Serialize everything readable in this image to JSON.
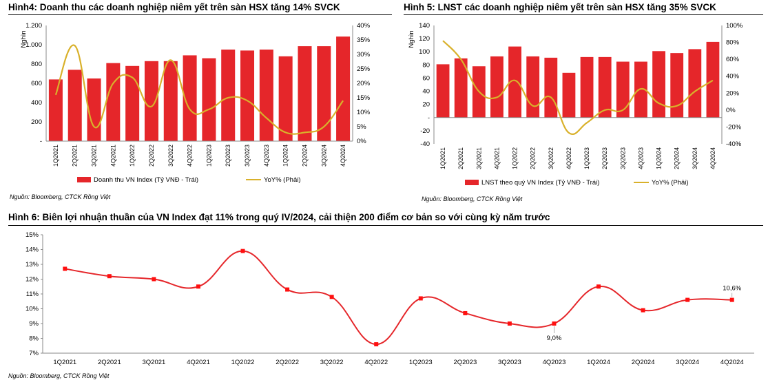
{
  "colors": {
    "bar": "#e5262a",
    "yoy_line": "#d9b12b",
    "margin_line": "#e5262a",
    "marker": "#ff1010"
  },
  "figures": {
    "fig4": {
      "title": "Hình4: Doanh thu các doanh nghiệp niêm yết trên sàn HSX tăng 14% SVCK",
      "source": "Nguồn: Bloomberg, CTCK Rồng Việt"
    },
    "fig5": {
      "title": "Hình 5: LNST các doanh nghiệp niêm yết trên sàn HSX tăng 35% SVCK",
      "source": "Nguồn: Bloomberg, CTCK Rồng Việt"
    },
    "fig6": {
      "title": "Hình 6: Biên lợi nhuận thuần của VN Index đạt 11% trong quý IV/2024, cải thiện 200 điểm cơ bản so với cùng kỳ năm trước",
      "source": "Nguồn: Bloomberg, CTCK Rồng Việt"
    }
  },
  "chart_data": [
    {
      "type": "bar+line",
      "categories": [
        "1Q2021",
        "2Q2021",
        "3Q2021",
        "4Q2021",
        "1Q2022",
        "2Q2022",
        "3Q2022",
        "4Q2022",
        "1Q2023",
        "2Q2023",
        "3Q2023",
        "4Q2023",
        "1Q2024",
        "2Q2024",
        "3Q2024",
        "4Q2024"
      ],
      "ylabel": "Nghìn",
      "y_ticks": [
        "-",
        "200",
        "400",
        "600",
        "800",
        "1.000",
        "1.200"
      ],
      "y2_ticks": [
        "0%",
        "5%",
        "10%",
        "15%",
        "20%",
        "25%",
        "30%",
        "35%",
        "40%"
      ],
      "ylim": [
        0,
        1200
      ],
      "y2lim": [
        0,
        40
      ],
      "series": [
        {
          "name": "Doanh thu VN Index (Tỷ VNĐ - Trái)",
          "kind": "bar",
          "axis": "left",
          "values": [
            640,
            740,
            650,
            810,
            780,
            830,
            830,
            890,
            860,
            950,
            940,
            950,
            880,
            985,
            985,
            1085
          ]
        },
        {
          "name": "YoY% (Phải)",
          "kind": "line",
          "axis": "right",
          "values": [
            16,
            33,
            5,
            20,
            22,
            12,
            28,
            11,
            11,
            15,
            14,
            8,
            3,
            3,
            5,
            14
          ]
        }
      ]
    },
    {
      "type": "bar+line",
      "categories": [
        "1Q2021",
        "2Q2021",
        "3Q2021",
        "4Q2021",
        "1Q2022",
        "2Q2022",
        "3Q2022",
        "4Q2022",
        "1Q2023",
        "2Q2023",
        "3Q2023",
        "4Q2023",
        "1Q2024",
        "2Q2024",
        "3Q2024",
        "4Q2024"
      ],
      "ylabel": "Nghìn",
      "y_ticks": [
        "-40",
        "-20",
        "-",
        "20",
        "40",
        "60",
        "80",
        "100",
        "120",
        "140"
      ],
      "y2_ticks": [
        "-40%",
        "-20%",
        "0%",
        "20%",
        "40%",
        "60%",
        "80%",
        "100%"
      ],
      "ylim": [
        -40,
        140
      ],
      "y2lim": [
        -40,
        100
      ],
      "series": [
        {
          "name": "LNST theo quý VN Index (Tỷ VNĐ - Trái)",
          "kind": "bar",
          "axis": "left",
          "values": [
            81,
            90,
            78,
            93,
            108,
            93,
            91,
            68,
            92,
            92,
            85,
            85,
            101,
            98,
            104,
            115
          ]
        },
        {
          "name": "YoY% (Phải)",
          "kind": "line",
          "axis": "right",
          "values": [
            82,
            60,
            22,
            15,
            35,
            5,
            15,
            -27,
            -15,
            0,
            0,
            25,
            8,
            5,
            22,
            35
          ]
        }
      ]
    },
    {
      "type": "line",
      "categories": [
        "1Q2021",
        "2Q2021",
        "3Q2021",
        "4Q2021",
        "1Q2022",
        "2Q2022",
        "3Q2022",
        "4Q2022",
        "1Q2023",
        "2Q2023",
        "3Q2023",
        "4Q2023",
        "1Q2024",
        "2Q2024",
        "3Q2024",
        "4Q2024"
      ],
      "y_ticks": [
        "7%",
        "8%",
        "9%",
        "10%",
        "11%",
        "12%",
        "13%",
        "14%",
        "15%"
      ],
      "ylim": [
        7,
        15
      ],
      "series": [
        {
          "name": "Biên lợi nhuận thuần VN Index",
          "values": [
            12.7,
            12.2,
            12.0,
            11.5,
            13.9,
            11.3,
            10.8,
            7.6,
            10.7,
            9.7,
            9.0,
            9.0,
            11.5,
            9.9,
            10.6,
            10.6
          ]
        }
      ],
      "annotations": [
        {
          "label": "9,0%",
          "index": 11
        },
        {
          "label": "10,6%",
          "index": 15
        }
      ]
    }
  ]
}
